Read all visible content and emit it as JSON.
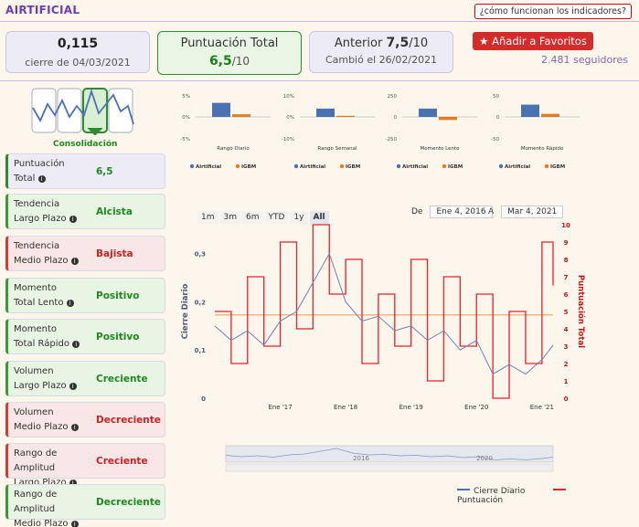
{
  "header": {
    "title": "AIRTIFICIAL",
    "help_link": "¿cómo funcionan los indicadores?"
  },
  "cards": {
    "price": {
      "value": "0,115",
      "caption": "cierre de 04/03/2021"
    },
    "score": {
      "label": "Puntuación Total",
      "value": "6,5",
      "suffix": "/10"
    },
    "previous": {
      "label": "Anterior",
      "value": "7,5",
      "suffix": "/10",
      "caption": "Cambió el 26/02/2021"
    }
  },
  "favorites": {
    "label": "Añadir a Favoritos",
    "followers": "2.481 seguidores"
  },
  "consolidation_label": "Consolidación",
  "indicators": [
    {
      "line1": "Puntuación",
      "line2": "Total",
      "value": "6,5",
      "status": "total"
    },
    {
      "line1": "Tendencia",
      "line2": "Largo Plazo",
      "value": "Alcista",
      "status": "green"
    },
    {
      "line1": "Tendencia",
      "line2": "Medio Plazo",
      "value": "Bajista",
      "status": "red"
    },
    {
      "line1": "Momento",
      "line2": "Total Lento",
      "value": "Positivo",
      "status": "green"
    },
    {
      "line1": "Momento",
      "line2": "Total Rápido",
      "value": "Positivo",
      "status": "green"
    },
    {
      "line1": "Volumen",
      "line2": "Largo Plazo",
      "value": "Creciente",
      "status": "green"
    },
    {
      "line1": "Volumen",
      "line2": "Medio Plazo",
      "value": "Decreciente",
      "status": "red"
    },
    {
      "line1": "Rango de Amplitud",
      "line2": "Largo Plazo",
      "value": "Creciente",
      "status": "red"
    },
    {
      "line1": "Rango de Amplitud",
      "line2": "Medio Plazo",
      "value": "Decreciente",
      "status": "green"
    }
  ],
  "mini_legend": {
    "a": "Airtificial",
    "b": "IGBM"
  },
  "colors": {
    "blue": "#4a72b0",
    "orange": "#e07b22",
    "red": "#e8202a",
    "green": "#2e8b2e",
    "purple": "#6b3fb0"
  },
  "timeframes": [
    "1m",
    "3m",
    "6m",
    "YTD",
    "1y",
    "All"
  ],
  "active_timeframe": "All",
  "range": {
    "from_label": "De",
    "from": "Ene 4, 2016",
    "to_label": "A",
    "to": "Mar 4, 2021"
  },
  "legend": {
    "series1": "Cierre Diario",
    "series2": "Puntuación"
  },
  "navigator": {
    "year1": "2016",
    "year2": "2020"
  },
  "chart_data": [
    {
      "type": "bar",
      "title": "",
      "xlabel": "Rango Diario",
      "yticks": [
        "5%",
        "0%",
        "-5%"
      ],
      "ylim": [
        -5,
        5
      ],
      "series": [
        {
          "name": "Airtificial",
          "values": [
            3.2
          ]
        },
        {
          "name": "IGBM",
          "values": [
            0.6
          ]
        }
      ]
    },
    {
      "type": "bar",
      "title": "",
      "xlabel": "Rango Semanal",
      "yticks": [
        "10%",
        "0%",
        "-10%"
      ],
      "ylim": [
        -10,
        10
      ],
      "series": [
        {
          "name": "Airtificial",
          "values": [
            3.8
          ]
        },
        {
          "name": "IGBM",
          "values": [
            0.5
          ]
        }
      ]
    },
    {
      "type": "bar",
      "title": "",
      "xlabel": "Momento Lento",
      "yticks": [
        "250",
        "0",
        "-250"
      ],
      "ylim": [
        -250,
        250
      ],
      "series": [
        {
          "name": "Airtificial",
          "values": [
            95
          ]
        },
        {
          "name": "IGBM",
          "values": [
            -35
          ]
        }
      ]
    },
    {
      "type": "bar",
      "title": "",
      "xlabel": "Momento Rápido",
      "yticks": [
        "50",
        "0",
        "-50"
      ],
      "ylim": [
        -50,
        50
      ],
      "series": [
        {
          "name": "Airtificial",
          "values": [
            28
          ]
        },
        {
          "name": "IGBM",
          "values": [
            7
          ]
        }
      ]
    },
    {
      "type": "line",
      "title": "",
      "ylabel": "Cierre Diario",
      "y2label": "Puntuación Total",
      "xticks": [
        "Ene '17",
        "Ene '18",
        "Ene '19",
        "Ene '20",
        "Ene '21"
      ],
      "yticks": [
        "0",
        "0,1",
        "0,2",
        "0,3"
      ],
      "y2ticks": [
        "0",
        "1",
        "2",
        "3",
        "4",
        "5",
        "6",
        "7",
        "8",
        "9",
        "10"
      ],
      "ylim": [
        0,
        0.36
      ],
      "y2lim": [
        0,
        10
      ],
      "reference_line": 4.8,
      "x": [
        2016.0,
        2016.25,
        2016.5,
        2016.75,
        2017.0,
        2017.25,
        2017.5,
        2017.75,
        2018.0,
        2018.25,
        2018.5,
        2018.75,
        2019.0,
        2019.25,
        2019.5,
        2019.75,
        2020.0,
        2020.25,
        2020.5,
        2020.75,
        2021.0,
        2021.17
      ],
      "series": [
        {
          "name": "Cierre Diario",
          "axis": "left",
          "values": [
            0.15,
            0.12,
            0.14,
            0.11,
            0.16,
            0.18,
            0.24,
            0.3,
            0.2,
            0.16,
            0.17,
            0.14,
            0.15,
            0.12,
            0.14,
            0.1,
            0.12,
            0.05,
            0.07,
            0.05,
            0.08,
            0.11
          ]
        },
        {
          "name": "Puntuación",
          "axis": "right",
          "values": [
            5,
            2,
            7,
            3,
            9,
            4,
            10,
            6,
            8,
            2,
            6,
            3,
            8,
            1,
            7,
            3,
            6,
            0,
            5,
            2,
            9,
            6.5
          ]
        }
      ]
    }
  ]
}
